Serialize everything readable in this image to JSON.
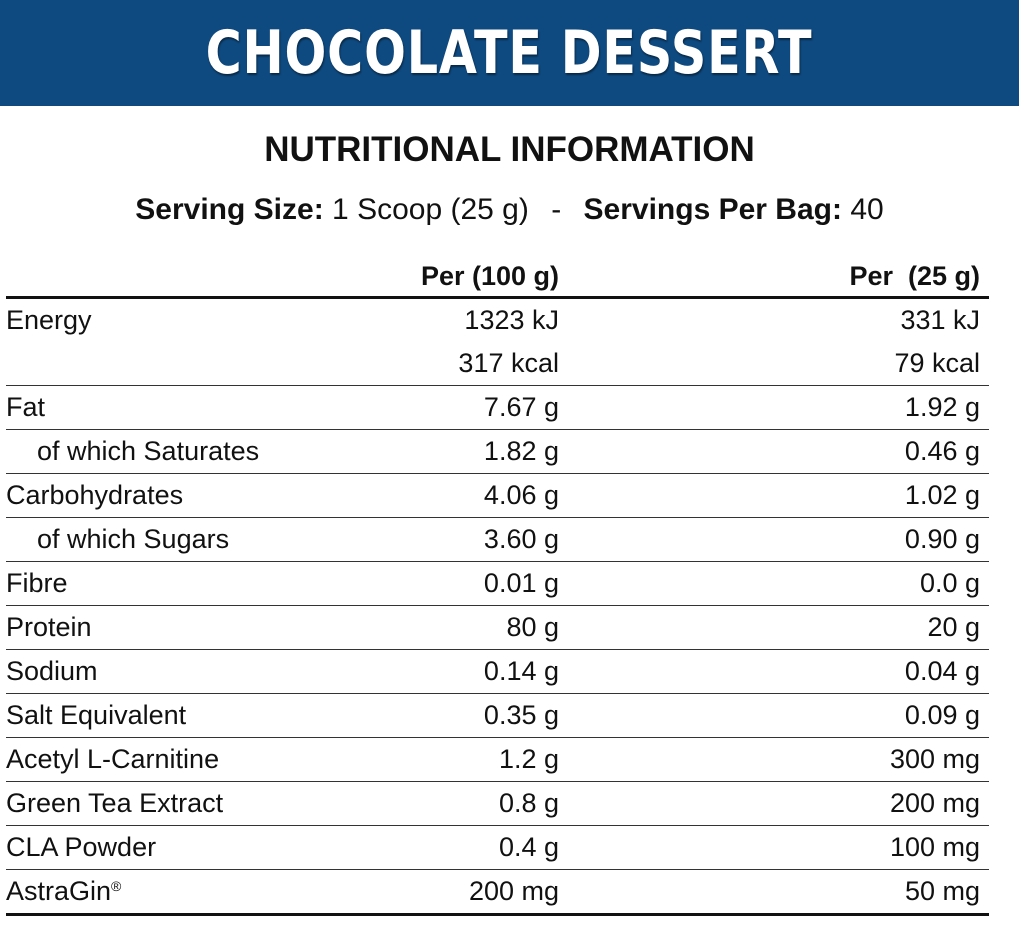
{
  "banner": {
    "title": "CHOCOLATE DESSERT",
    "background": "#0e4a80"
  },
  "heading": "NUTRITIONAL INFORMATION",
  "serving": {
    "size_label": "Serving Size:",
    "size_value": "1 Scoop (25 g)",
    "separator": "-",
    "servings_label": "Servings Per Bag:",
    "servings_value": "40"
  },
  "table": {
    "headers": {
      "name": "",
      "per100": "Per (100 g)",
      "per25": "Per  (25 g)"
    },
    "rows": [
      {
        "name": "Energy",
        "per100": "1323 kJ",
        "per25": "331 kJ"
      },
      {
        "name": "",
        "per100": "317 kcal",
        "per25": "79 kcal"
      },
      {
        "name": "Fat",
        "per100": "7.67 g",
        "per25": "1.92 g"
      },
      {
        "name": "of which Saturates",
        "per100": "1.82 g",
        "per25": "0.46 g"
      },
      {
        "name": "Carbohydrates",
        "per100": "4.06 g",
        "per25": "1.02 g"
      },
      {
        "name": "of which Sugars",
        "per100": "3.60 g",
        "per25": "0.90 g"
      },
      {
        "name": "Fibre",
        "per100": "0.01 g",
        "per25": "0.0 g"
      },
      {
        "name": "Protein",
        "per100": "80 g",
        "per25": "20 g"
      },
      {
        "name": "Sodium",
        "per100": "0.14 g",
        "per25": "0.04 g"
      },
      {
        "name": "Salt Equivalent",
        "per100": "0.35 g",
        "per25": "0.09 g"
      },
      {
        "name": "Acetyl L-Carnitine",
        "per100": "1.2 g",
        "per25": "300 mg"
      },
      {
        "name": "Green Tea Extract",
        "per100": "0.8 g",
        "per25": "200 mg"
      },
      {
        "name": "CLA Powder",
        "per100": "0.4 g",
        "per25": "100 mg"
      },
      {
        "name": "AstraGin",
        "name_mark": "®",
        "per100": "200 mg",
        "per25": "50 mg"
      }
    ]
  }
}
